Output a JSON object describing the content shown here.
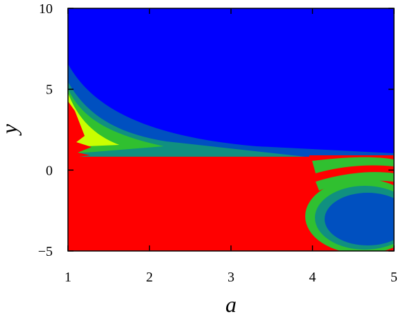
{
  "chart_data": {
    "type": "region",
    "x_label": "a",
    "y_label": "y",
    "xlim": [
      1,
      5
    ],
    "ylim": [
      -5,
      10
    ],
    "xticks": [
      1,
      2,
      3,
      4,
      5
    ],
    "yticks": [
      {
        "value": -5,
        "label": "−5"
      },
      0,
      5,
      10
    ]
  }
}
